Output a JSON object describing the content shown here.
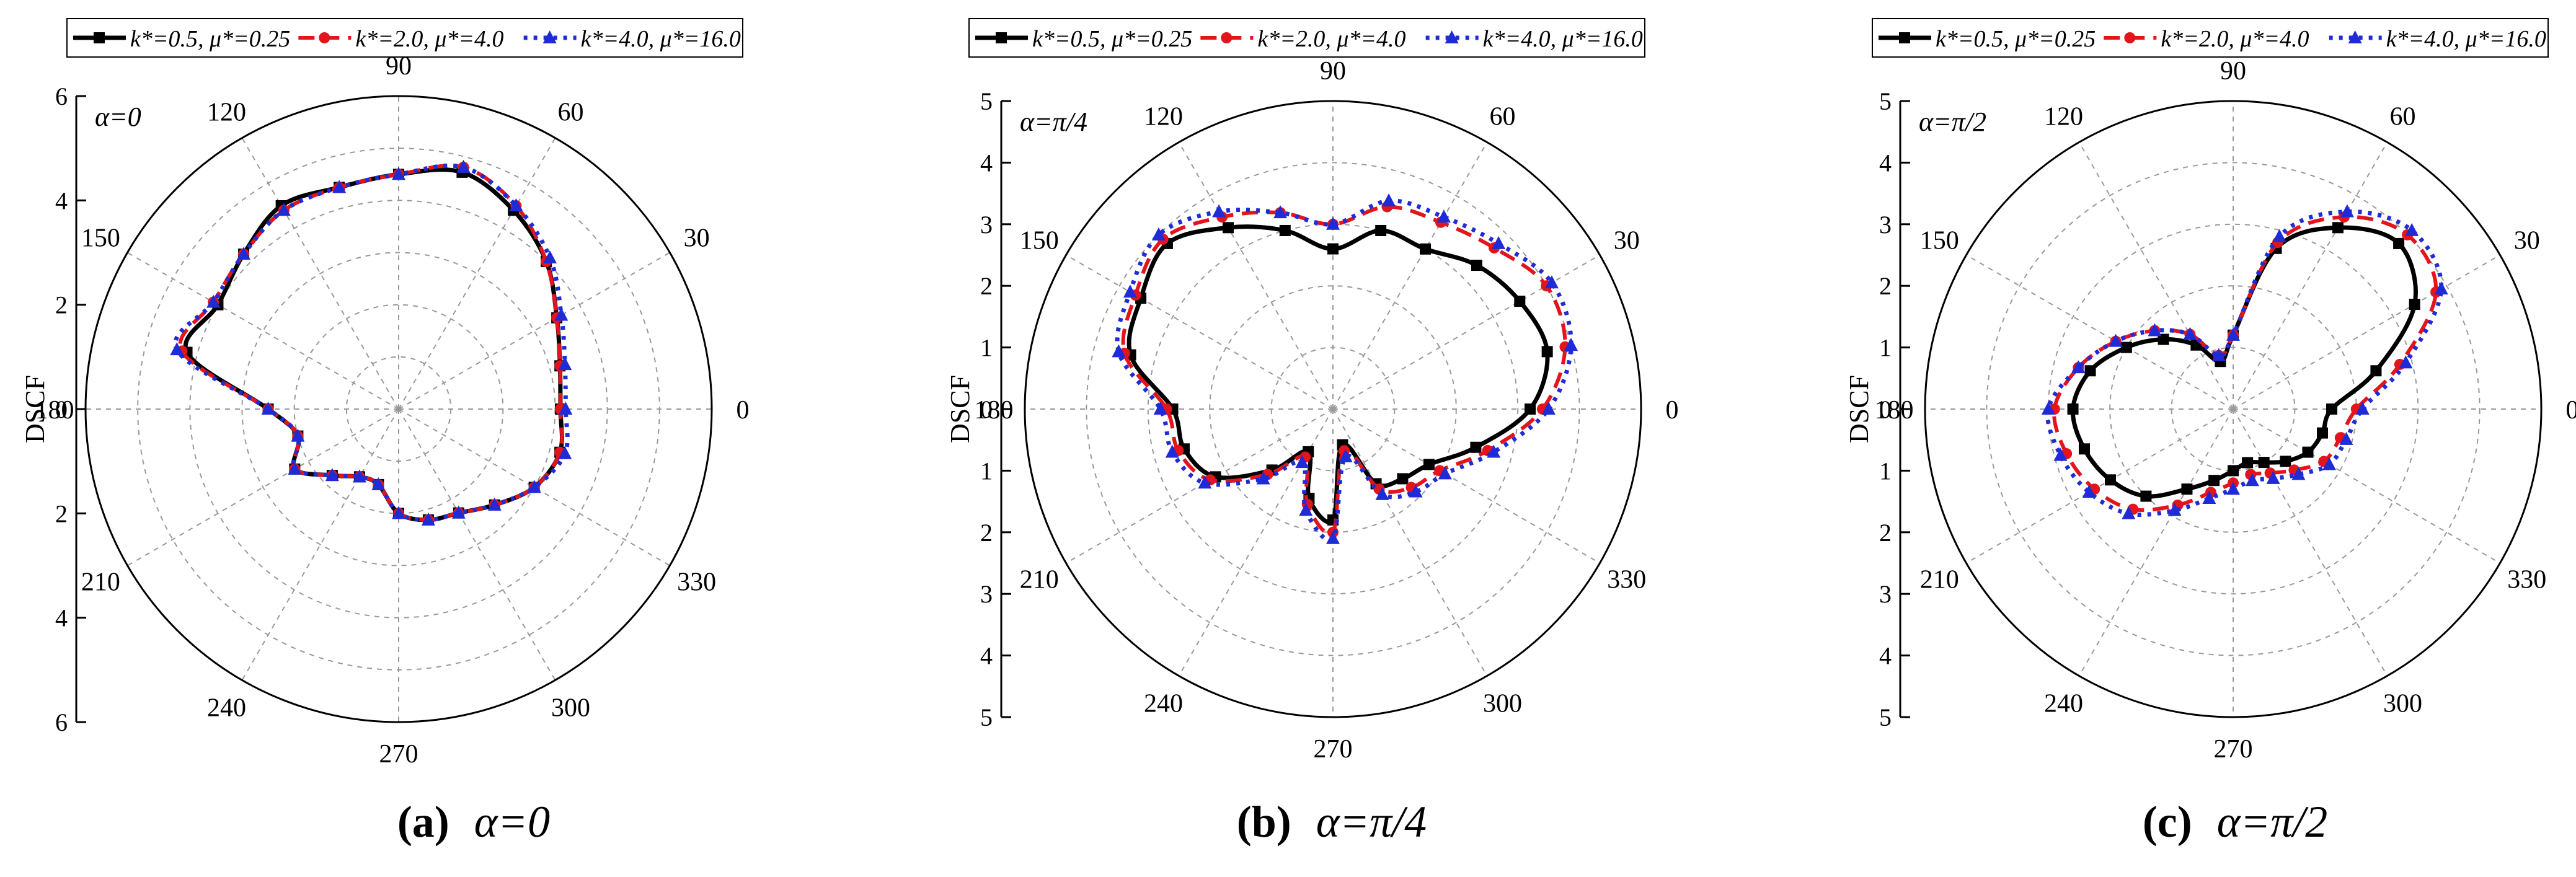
{
  "figure": {
    "captions": [
      {
        "label": "(a)",
        "expr": "α=0"
      },
      {
        "label": "(b)",
        "expr": "α=π/4"
      },
      {
        "label": "(c)",
        "expr": "α=π/2"
      }
    ]
  },
  "legend": {
    "entries": [
      {
        "text": "k*=0.5, μ*=0.25",
        "color": "#000000",
        "marker": "square",
        "dash": "solid"
      },
      {
        "text": "k*=2.0, μ*=4.0",
        "color": "#e3141b",
        "marker": "circle",
        "dash": "dashed"
      },
      {
        "text": "k*=4.0, μ*=16.0",
        "color": "#1f2bd6",
        "marker": "triangle",
        "dash": "dotted"
      }
    ]
  },
  "chart_data": [
    {
      "type": "polar",
      "annotation": "α=0",
      "ylabel": "DSCF",
      "rmax": 6,
      "radial_ticks": [
        "6",
        "4",
        "2",
        "0",
        "2",
        "4",
        "6"
      ],
      "angle_ticks": [
        "0",
        "30",
        "60",
        "90",
        "120",
        "150",
        "180",
        "210",
        "240",
        "270",
        "300",
        "330"
      ],
      "angles_deg": [
        0,
        15,
        30,
        45,
        60,
        75,
        90,
        105,
        120,
        135,
        150,
        165,
        180,
        195,
        210,
        225,
        240,
        255,
        270,
        285,
        300,
        315,
        330,
        345
      ],
      "series": [
        {
          "name": "k*=0.5, μ*=0.25",
          "values": [
            3.1,
            3.2,
            3.5,
            4.0,
            4.4,
            4.7,
            4.5,
            4.4,
            4.5,
            4.2,
            4.0,
            4.2,
            2.5,
            2.0,
            2.3,
            1.8,
            1.5,
            1.5,
            2.0,
            2.2,
            2.3,
            2.6,
            3.0,
            3.2
          ]
        },
        {
          "name": "k*=2.0, μ*=4.0",
          "values": [
            3.1,
            3.2,
            3.5,
            4.0,
            4.5,
            4.8,
            4.5,
            4.4,
            4.4,
            4.2,
            4.1,
            4.3,
            2.5,
            2.0,
            2.3,
            1.8,
            1.5,
            1.5,
            2.0,
            2.2,
            2.3,
            2.6,
            3.0,
            3.2
          ]
        },
        {
          "name": "k*=4.0, μ*=16.0",
          "values": [
            3.2,
            3.3,
            3.6,
            4.1,
            4.5,
            4.8,
            4.5,
            4.4,
            4.4,
            4.2,
            4.1,
            4.4,
            2.5,
            2.0,
            2.3,
            1.8,
            1.5,
            1.5,
            2.0,
            2.2,
            2.3,
            2.6,
            3.0,
            3.3
          ]
        }
      ]
    },
    {
      "type": "polar",
      "annotation": "α=π/4",
      "ylabel": "DSCF",
      "rmax": 5,
      "radial_ticks": [
        "5",
        "4",
        "3",
        "2",
        "1",
        "0",
        "1",
        "2",
        "3",
        "4",
        "5"
      ],
      "angle_ticks": [
        "0",
        "30",
        "60",
        "90",
        "120",
        "150",
        "180",
        "210",
        "240",
        "270",
        "300",
        "330"
      ],
      "angles_deg": [
        0,
        15,
        30,
        45,
        60,
        75,
        90,
        105,
        120,
        135,
        150,
        165,
        180,
        195,
        210,
        225,
        240,
        255,
        270,
        285,
        300,
        315,
        330,
        345
      ],
      "series": [
        {
          "name": "k*=0.5, μ*=0.25",
          "values": [
            3.2,
            3.6,
            3.5,
            3.3,
            3.0,
            3.0,
            2.6,
            3.0,
            3.4,
            3.8,
            3.6,
            3.4,
            2.6,
            2.5,
            2.2,
            1.4,
            0.8,
            1.5,
            1.8,
            0.6,
            1.4,
            1.6,
            1.8,
            2.4
          ]
        },
        {
          "name": "k*=2.0, μ*=4.0",
          "values": [
            3.4,
            3.9,
            4.0,
            3.7,
            3.5,
            3.4,
            3.0,
            3.3,
            3.6,
            3.9,
            3.7,
            3.5,
            2.7,
            2.6,
            2.3,
            1.5,
            0.9,
            1.6,
            2.0,
            0.7,
            1.5,
            1.8,
            2.0,
            2.6
          ]
        },
        {
          "name": "k*=4.0, μ*=16.0",
          "values": [
            3.5,
            4.0,
            4.1,
            3.8,
            3.6,
            3.5,
            3.0,
            3.3,
            3.7,
            4.0,
            3.8,
            3.6,
            2.8,
            2.7,
            2.4,
            1.6,
            1.0,
            1.7,
            2.1,
            0.8,
            1.6,
            1.9,
            2.1,
            2.7
          ]
        }
      ]
    },
    {
      "type": "polar",
      "annotation": "α=π/2",
      "ylabel": "DSCF",
      "rmax": 5,
      "radial_ticks": [
        "5",
        "4",
        "3",
        "2",
        "1",
        "0",
        "1",
        "2",
        "3",
        "4",
        "5"
      ],
      "angle_ticks": [
        "0",
        "30",
        "60",
        "90",
        "120",
        "150",
        "180",
        "210",
        "240",
        "270",
        "300",
        "330"
      ],
      "angles_deg": [
        0,
        15,
        30,
        45,
        60,
        75,
        90,
        105,
        120,
        135,
        150,
        165,
        180,
        195,
        210,
        225,
        240,
        255,
        270,
        285,
        300,
        315,
        330,
        345
      ],
      "series": [
        {
          "name": "k*=0.5, μ*=0.25",
          "values": [
            1.6,
            2.4,
            3.4,
            3.8,
            3.4,
            2.7,
            1.2,
            0.8,
            1.2,
            1.6,
            2.0,
            2.4,
            2.6,
            2.5,
            2.3,
            2.0,
            1.5,
            1.2,
            1.0,
            0.9,
            1.0,
            1.2,
            1.4,
            1.5
          ]
        },
        {
          "name": "k*=2.0, μ*=4.0",
          "values": [
            2.0,
            2.8,
            3.8,
            4.0,
            3.6,
            2.8,
            1.2,
            0.9,
            1.4,
            1.8,
            2.2,
            2.6,
            2.9,
            2.8,
            2.6,
            2.3,
            1.8,
            1.4,
            1.2,
            1.1,
            1.2,
            1.4,
            1.7,
            1.8
          ]
        },
        {
          "name": "k*=4.0, μ*=16.0",
          "values": [
            2.1,
            2.9,
            3.9,
            4.1,
            3.7,
            2.9,
            1.2,
            0.9,
            1.4,
            1.8,
            2.2,
            2.6,
            3.0,
            2.9,
            2.7,
            2.4,
            1.9,
            1.5,
            1.3,
            1.2,
            1.3,
            1.5,
            1.8,
            1.9
          ]
        }
      ]
    }
  ]
}
